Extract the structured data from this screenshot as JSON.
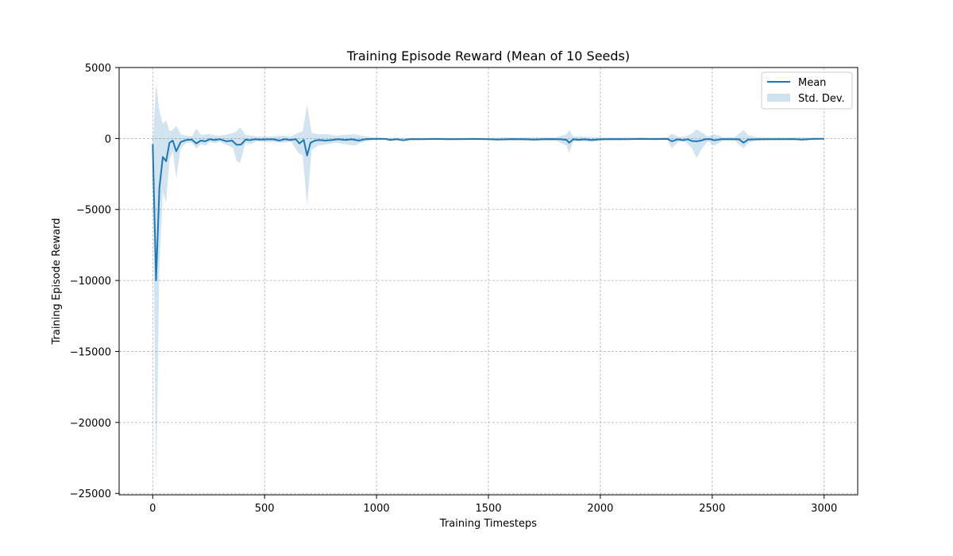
{
  "chart_data": {
    "type": "line",
    "title": "Training Episode Reward (Mean of 10 Seeds)",
    "xlabel": "Training Timesteps",
    "ylabel": "Training Episode Reward",
    "xlim": [
      -150,
      3150
    ],
    "ylim": [
      -25100,
      5000
    ],
    "x_ticks": [
      0,
      500,
      1000,
      1500,
      2000,
      2500,
      3000
    ],
    "y_ticks": [
      5000,
      0,
      -5000,
      -10000,
      -15000,
      -20000,
      -25000
    ],
    "x_tick_labels": [
      "0",
      "500",
      "1000",
      "1500",
      "2000",
      "2500",
      "3000"
    ],
    "y_tick_labels": [
      "5000",
      "0",
      "−5000",
      "−10000",
      "−15000",
      "−20000",
      "−25000"
    ],
    "grid": true,
    "legend_position": "top-right",
    "colors": {
      "mean": "#1f77b4",
      "band": "#1f77b4",
      "grid": "#b0b0b0"
    },
    "series": [
      {
        "name": "Mean",
        "kind": "line",
        "points": [
          [
            0,
            -400
          ],
          [
            15,
            -10000
          ],
          [
            30,
            -3500
          ],
          [
            45,
            -1300
          ],
          [
            60,
            -1600
          ],
          [
            75,
            -300
          ],
          [
            90,
            -150
          ],
          [
            105,
            -900
          ],
          [
            125,
            -250
          ],
          [
            150,
            -100
          ],
          [
            175,
            -80
          ],
          [
            195,
            -350
          ],
          [
            215,
            -150
          ],
          [
            235,
            -200
          ],
          [
            255,
            -50
          ],
          [
            275,
            -100
          ],
          [
            300,
            -50
          ],
          [
            330,
            -200
          ],
          [
            355,
            -150
          ],
          [
            375,
            -450
          ],
          [
            395,
            -420
          ],
          [
            415,
            -80
          ],
          [
            435,
            -120
          ],
          [
            455,
            -50
          ],
          [
            480,
            -80
          ],
          [
            510,
            -60
          ],
          [
            540,
            -60
          ],
          [
            565,
            -150
          ],
          [
            590,
            -50
          ],
          [
            615,
            -100
          ],
          [
            640,
            -50
          ],
          [
            655,
            -350
          ],
          [
            675,
            -100
          ],
          [
            690,
            -1200
          ],
          [
            705,
            -300
          ],
          [
            725,
            -150
          ],
          [
            745,
            -100
          ],
          [
            770,
            -150
          ],
          [
            800,
            -100
          ],
          [
            830,
            -50
          ],
          [
            860,
            -100
          ],
          [
            890,
            -60
          ],
          [
            920,
            -150
          ],
          [
            950,
            -50
          ],
          [
            980,
            -30
          ],
          [
            1010,
            -20
          ],
          [
            1040,
            -30
          ],
          [
            1060,
            -100
          ],
          [
            1090,
            -50
          ],
          [
            1120,
            -130
          ],
          [
            1150,
            -40
          ],
          [
            1200,
            -50
          ],
          [
            1260,
            -30
          ],
          [
            1320,
            -50
          ],
          [
            1380,
            -40
          ],
          [
            1440,
            -30
          ],
          [
            1500,
            -50
          ],
          [
            1540,
            -80
          ],
          [
            1600,
            -40
          ],
          [
            1660,
            -50
          ],
          [
            1700,
            -80
          ],
          [
            1760,
            -40
          ],
          [
            1820,
            -50
          ],
          [
            1850,
            -100
          ],
          [
            1860,
            -300
          ],
          [
            1880,
            -50
          ],
          [
            1900,
            -90
          ],
          [
            1930,
            -60
          ],
          [
            1960,
            -100
          ],
          [
            2000,
            -60
          ],
          [
            2060,
            -40
          ],
          [
            2120,
            -50
          ],
          [
            2180,
            -30
          ],
          [
            2240,
            -40
          ],
          [
            2300,
            -30
          ],
          [
            2320,
            -200
          ],
          [
            2345,
            -60
          ],
          [
            2370,
            -120
          ],
          [
            2390,
            -50
          ],
          [
            2410,
            -180
          ],
          [
            2430,
            -200
          ],
          [
            2450,
            -150
          ],
          [
            2470,
            -50
          ],
          [
            2490,
            -40
          ],
          [
            2510,
            -130
          ],
          [
            2540,
            -50
          ],
          [
            2580,
            -50
          ],
          [
            2620,
            -60
          ],
          [
            2640,
            -300
          ],
          [
            2660,
            -80
          ],
          [
            2700,
            -60
          ],
          [
            2740,
            -50
          ],
          [
            2800,
            -50
          ],
          [
            2860,
            -40
          ],
          [
            2900,
            -80
          ],
          [
            2950,
            -30
          ],
          [
            3000,
            -20
          ]
        ]
      },
      {
        "name": "Std. Dev.",
        "kind": "band",
        "x": [
          0,
          15,
          30,
          45,
          60,
          75,
          90,
          105,
          125,
          150,
          175,
          195,
          215,
          235,
          255,
          280,
          300,
          320,
          340,
          360,
          375,
          390,
          415,
          440,
          465,
          500,
          540,
          580,
          620,
          650,
          670,
          690,
          710,
          740,
          780,
          820,
          860,
          900,
          950,
          1000,
          1100,
          1200,
          1300,
          1400,
          1500,
          1600,
          1700,
          1800,
          1850,
          1860,
          1880,
          1920,
          1960,
          2000,
          2100,
          2200,
          2300,
          2320,
          2350,
          2380,
          2410,
          2430,
          2450,
          2480,
          2510,
          2550,
          2600,
          2640,
          2660,
          2700,
          2800,
          2900,
          3000
        ],
        "lower": [
          -400,
          -24500,
          -9000,
          -3800,
          -4500,
          -1500,
          -900,
          -2800,
          -700,
          -300,
          -300,
          -700,
          -400,
          -500,
          -250,
          -350,
          -200,
          -400,
          -500,
          -700,
          -1600,
          -1700,
          -300,
          -400,
          -200,
          -250,
          -250,
          -300,
          -250,
          -1000,
          -1200,
          -4700,
          -800,
          -500,
          -400,
          -300,
          -400,
          -500,
          -200,
          -100,
          -100,
          -100,
          -100,
          -100,
          -100,
          -150,
          -150,
          -150,
          -500,
          -1000,
          -200,
          -200,
          -250,
          -150,
          -100,
          -100,
          -100,
          -700,
          -200,
          -250,
          -700,
          -1400,
          -800,
          -200,
          -500,
          -150,
          -150,
          -700,
          -300,
          -150,
          -100,
          -100,
          -50
        ],
        "upper": [
          -400,
          3800,
          2000,
          1000,
          1300,
          500,
          600,
          900,
          300,
          200,
          150,
          700,
          250,
          300,
          300,
          200,
          200,
          250,
          300,
          400,
          500,
          800,
          250,
          200,
          150,
          150,
          150,
          200,
          150,
          400,
          500,
          2400,
          400,
          300,
          300,
          200,
          250,
          300,
          150,
          50,
          50,
          50,
          50,
          50,
          50,
          80,
          80,
          80,
          300,
          600,
          150,
          150,
          100,
          80,
          80,
          80,
          80,
          350,
          120,
          150,
          350,
          650,
          450,
          150,
          300,
          100,
          100,
          600,
          250,
          100,
          80,
          80,
          50
        ]
      }
    ]
  }
}
